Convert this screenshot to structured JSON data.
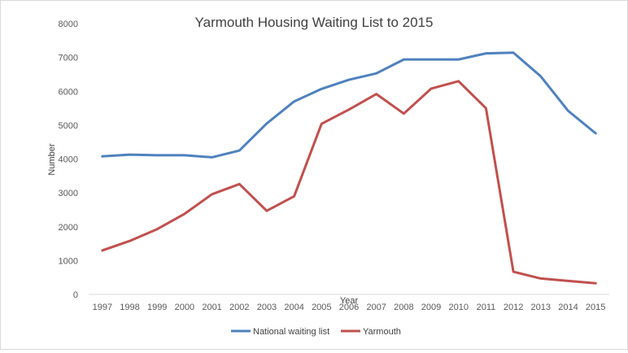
{
  "chart_data": {
    "type": "line",
    "title": "Yarmouth Housing Waiting List to 2015",
    "xlabel": "Year",
    "ylabel": "Number",
    "ylim": [
      0,
      8000
    ],
    "yticks": [
      0,
      1000,
      2000,
      3000,
      4000,
      5000,
      6000,
      7000,
      8000
    ],
    "grid": false,
    "legend": "bottom",
    "categories": [
      "1997",
      "1998",
      "1999",
      "2000",
      "2001",
      "2002",
      "2003",
      "2004",
      "2005",
      "2006",
      "2007",
      "2008",
      "2009",
      "2010",
      "2011",
      "2012",
      "2013",
      "2014",
      "2015"
    ],
    "series": [
      {
        "name": "National waiting list",
        "color": "#4f81bd",
        "values": [
          4080,
          4130,
          4110,
          4110,
          4050,
          4250,
          5050,
          5700,
          6070,
          6340,
          6530,
          6940,
          6940,
          6940,
          7120,
          7140,
          6440,
          5420,
          4760
        ]
      },
      {
        "name": "Yarmouth",
        "color": "#c0504d",
        "values": [
          1300,
          1580,
          1930,
          2380,
          2960,
          3260,
          2470,
          2900,
          5040,
          5460,
          5920,
          5340,
          6080,
          6300,
          5500,
          670,
          470,
          400,
          330
        ]
      }
    ]
  }
}
